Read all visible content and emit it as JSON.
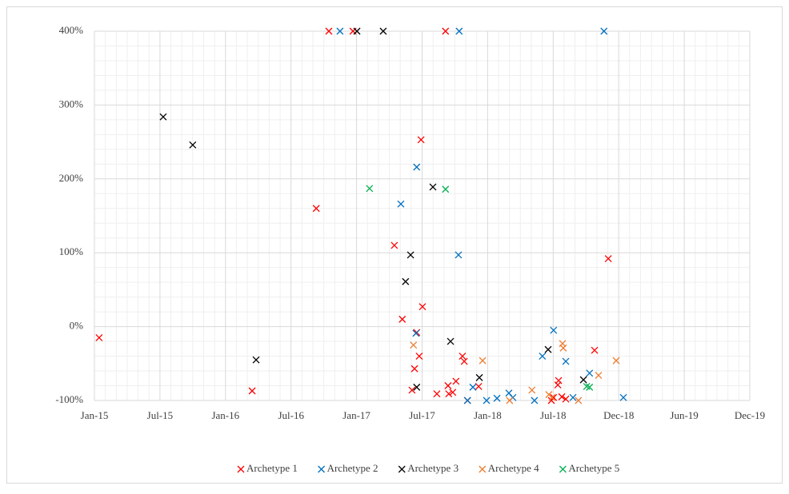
{
  "chart_data": {
    "type": "scatter",
    "marker": "x",
    "grid": true,
    "minor_grid": true,
    "legend": "bottom",
    "xlim": [
      42005,
      43825
    ],
    "xticks": [
      {
        "value": 42005,
        "label": "Jan-15"
      },
      {
        "value": 42187,
        "label": "Jul-15"
      },
      {
        "value": 42369,
        "label": "Jan-16"
      },
      {
        "value": 42551,
        "label": "Jul-16"
      },
      {
        "value": 42733,
        "label": "Jan-17"
      },
      {
        "value": 42915,
        "label": "Jul-17"
      },
      {
        "value": 43097,
        "label": "Jan-18"
      },
      {
        "value": 43279,
        "label": "Jul-18"
      },
      {
        "value": 43461,
        "label": "Dec-18"
      },
      {
        "value": 43643,
        "label": "Jun-19"
      },
      {
        "value": 43825,
        "label": "Dec-19"
      }
    ],
    "ylim": [
      -100,
      400
    ],
    "yticks": [
      {
        "value": -100,
        "label": "-100%"
      },
      {
        "value": 0,
        "label": "0%"
      },
      {
        "value": 100,
        "label": "100%"
      },
      {
        "value": 200,
        "label": "200%"
      },
      {
        "value": 300,
        "label": "300%"
      },
      {
        "value": 400,
        "label": "400%"
      }
    ],
    "series": [
      {
        "name": "Archetype 1",
        "color": "#ff0000",
        "x": [
          42018,
          42443,
          42621,
          42656,
          42723,
          42838,
          42860,
          42887,
          42894,
          42900,
          42907,
          42912,
          42916,
          42956,
          42980,
          42987,
          42989,
          43000,
          43009,
          43027,
          43032,
          43041,
          43072,
          43274,
          43280,
          43292,
          43294,
          43303,
          43314,
          43394,
          43432
        ],
        "values": [
          -15,
          -87,
          160,
          400,
          400,
          110,
          10,
          -86,
          -57,
          -8,
          -40,
          253,
          27,
          -91,
          400,
          -80,
          -91,
          -89,
          -74,
          -40,
          -47,
          -100,
          -81,
          -100,
          -96,
          -79,
          -73,
          -95,
          -98,
          -32,
          92
        ]
      },
      {
        "name": "Archetype 2",
        "color": "#0070c0",
        "x": [
          42687,
          42856,
          42898,
          42900,
          43016,
          43018,
          43041,
          43056,
          43094,
          43123,
          43156,
          43167,
          43227,
          43249,
          43280,
          43314,
          43334,
          43380,
          43420,
          43474
        ],
        "values": [
          400,
          166,
          -9,
          216,
          97,
          400,
          -100,
          -82,
          -100,
          -97,
          -90,
          -96,
          -100,
          -40,
          -5,
          -47,
          -96,
          -63,
          400,
          -96
        ]
      },
      {
        "name": "Archetype 3",
        "color": "#000000",
        "x": [
          42196,
          42278,
          42454,
          42734,
          42807,
          42869,
          42883,
          42900,
          42945,
          42994,
          43074,
          43265,
          43363
        ],
        "values": [
          284,
          246,
          -45,
          400,
          400,
          61,
          97,
          -82,
          189,
          -20,
          -69,
          -31,
          -72
        ]
      },
      {
        "name": "Archetype 4",
        "color": "#ed7d31",
        "x": [
          42891,
          43083,
          43158,
          43220,
          43267,
          43276,
          43305,
          43307,
          43349,
          43405,
          43454
        ],
        "values": [
          -25,
          -46,
          -100,
          -86,
          -92,
          -96,
          -23,
          -29,
          -100,
          -66,
          -46
        ]
      },
      {
        "name": "Archetype 5",
        "color": "#00b050",
        "x": [
          42769,
          42980,
          43372,
          43380
        ],
        "values": [
          187,
          186,
          -81,
          -82
        ]
      }
    ]
  }
}
